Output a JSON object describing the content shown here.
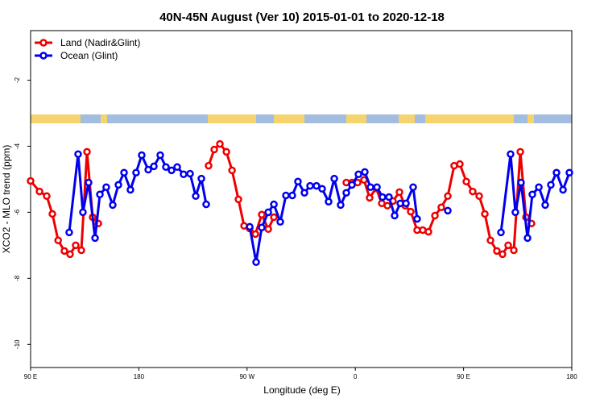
{
  "chart_data": {
    "type": "line",
    "title": "40N-45N August (Ver 10)   2015-01-01 to 2020-12-18",
    "x_label": "Longitude (deg E)",
    "y_label": "XCO2 - MLO trend (ppm)",
    "xlim": [
      90,
      540
    ],
    "ylim": [
      -10.7,
      -0.5
    ],
    "xticks": [
      {
        "value": 90,
        "label": "90 E"
      },
      {
        "value": 180,
        "label": "180"
      },
      {
        "value": 270,
        "label": "90 W"
      },
      {
        "value": 360,
        "label": "0"
      },
      {
        "value": 450,
        "label": "90 E"
      },
      {
        "value": 540,
        "label": "180"
      }
    ],
    "yticks": [
      -2,
      -4,
      -6,
      -8,
      -10
    ],
    "legend": "top-left",
    "series": [
      {
        "name": "Land (Nadir&Glint)",
        "color": "#ee0000",
        "x": [
          90,
          97.4,
          103.4,
          108.1,
          112.9,
          118.1,
          122.8,
          127.5,
          132.2,
          136.9,
          141.6,
          146.3,
          190,
          238.0,
          242.7,
          247.4,
          252.8,
          257.5,
          262.8,
          267.5,
          272.2,
          276.9,
          282.2,
          287.6,
          292.3,
          320,
          352.5,
          357.2,
          361.9,
          367.2,
          371.9,
          377.3,
          382.0,
          386.7,
          391.3,
          396.7,
          401.4,
          406.1,
          411.4,
          416.1,
          420.8,
          426.2,
          431.5,
          436.9,
          442.2,
          446.9,
          452.3,
          457.6,
          463.0,
          467.7,
          472.4,
          477.7,
          482.4,
          487.1,
          491.8,
          497.2,
          501.9,
          506.5
        ],
        "values": [
          -5.05,
          -5.37,
          -5.51,
          -6.05,
          -6.85,
          -7.17,
          -7.27,
          -7.0,
          -7.15,
          -4.17,
          -6.15,
          -6.34,
          null,
          -4.59,
          -4.1,
          -3.93,
          -4.17,
          -4.73,
          -5.61,
          -6.41,
          -6.49,
          -6.66,
          -6.07,
          -6.51,
          -6.15,
          null,
          -5.1,
          -5.1,
          -5.1,
          -5.02,
          -5.56,
          -5.27,
          -5.73,
          -5.8,
          -5.66,
          -5.39,
          -5.8,
          -5.98,
          -6.54,
          -6.54,
          -6.59,
          -6.1,
          -5.85,
          -5.51,
          -4.59,
          -4.54,
          -5.07,
          -5.37,
          -5.51,
          -6.05,
          -6.85,
          -7.17,
          -7.27,
          -7.0,
          -7.15,
          -4.17,
          -6.15,
          -6.34
        ]
      },
      {
        "name": "Ocean (Glint)",
        "color": "#0000ee",
        "x": [
          122.1,
          129.5,
          133.5,
          138.2,
          143.6,
          147.6,
          152.9,
          158.3,
          163.0,
          167.7,
          173.0,
          177.7,
          182.4,
          187.8,
          192.5,
          197.8,
          202.5,
          207.2,
          211.9,
          217.2,
          222.6,
          227.3,
          232.0,
          236.0,
          270,
          272.2,
          277.5,
          282.2,
          287.6,
          292.3,
          297.6,
          302.3,
          307.6,
          312.3,
          317.7,
          322.4,
          327.7,
          332.4,
          337.8,
          342.5,
          347.8,
          352.5,
          357.2,
          362.6,
          367.9,
          372.6,
          378.0,
          382.6,
          388.0,
          392.7,
          397.4,
          402.1,
          408.1,
          411.4,
          420,
          436.9,
          480,
          481.1,
          489.1,
          493.1,
          497.8,
          503.2,
          507.2,
          512.6,
          517.9,
          522.6,
          527.3,
          532.7,
          538.0
        ],
        "values": [
          -6.61,
          -4.24,
          -6.0,
          -5.1,
          -6.78,
          -5.46,
          -5.24,
          -5.78,
          -5.17,
          -4.8,
          -5.32,
          -4.8,
          -4.27,
          -4.71,
          -4.61,
          -4.27,
          -4.63,
          -4.73,
          -4.63,
          -4.85,
          -4.83,
          -5.51,
          -4.98,
          -5.76,
          null,
          -6.44,
          -7.51,
          -6.46,
          -6.0,
          -5.76,
          -6.29,
          -5.49,
          -5.49,
          -5.07,
          -5.41,
          -5.2,
          -5.2,
          -5.29,
          -5.68,
          -4.98,
          -5.78,
          -5.41,
          -5.17,
          -4.85,
          -4.78,
          -5.24,
          -5.24,
          -5.54,
          -5.54,
          -6.1,
          -5.73,
          -5.73,
          -5.24,
          -6.2,
          null,
          -5.95,
          null,
          -6.61,
          -4.24,
          -6.0,
          -5.1,
          -6.78,
          -5.46,
          -5.24,
          -5.78,
          -5.17,
          -4.8,
          -5.32,
          -4.8
        ]
      }
    ]
  }
}
